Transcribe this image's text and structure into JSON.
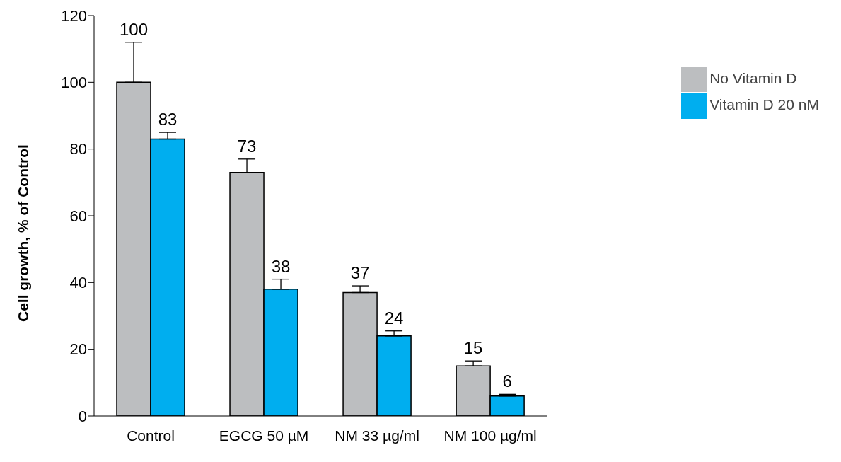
{
  "chart_data": {
    "type": "bar",
    "ylabel": "Cell growth, % of Control",
    "categories": [
      "Control",
      "EGCG 50 µM",
      "NM 33 µg/ml",
      "NM 100 µg/ml"
    ],
    "series": [
      {
        "name": "No Vitamin D",
        "color": "#bcbec0",
        "values": [
          100,
          73,
          37,
          15
        ],
        "errors": [
          12,
          4,
          2,
          1.5
        ]
      },
      {
        "name": "Vitamin D 20 nM",
        "color": "#00aeef",
        "values": [
          83,
          38,
          24,
          6
        ],
        "errors": [
          2,
          3,
          1.5,
          0.5
        ]
      }
    ],
    "ylim": [
      0,
      120
    ],
    "yticks": [
      0,
      20,
      40,
      60,
      80,
      100,
      120
    ],
    "grid": false,
    "legend": "top right",
    "data_labels": true
  }
}
